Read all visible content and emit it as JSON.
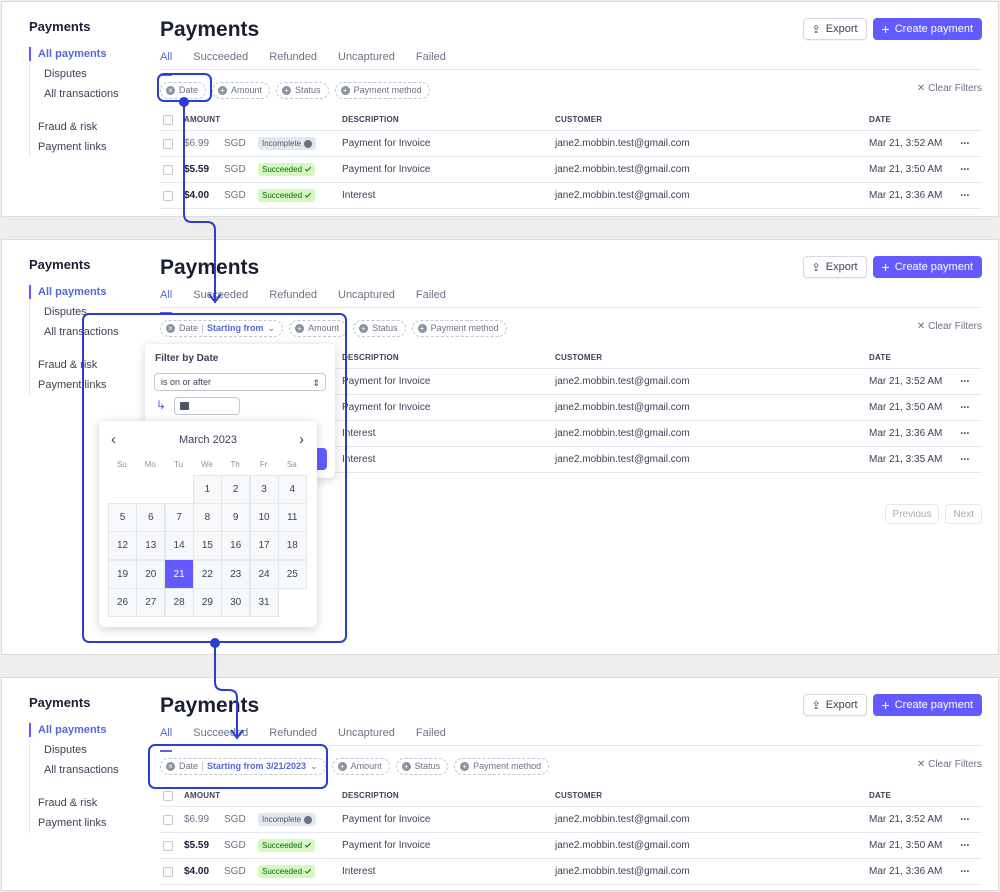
{
  "sidebar": {
    "title": "Payments",
    "items": [
      {
        "label": "All payments",
        "active": true,
        "sub": false
      },
      {
        "label": "Disputes",
        "active": false,
        "sub": true
      },
      {
        "label": "All transactions",
        "active": false,
        "sub": true
      },
      {
        "label": "Fraud & risk",
        "active": false,
        "sub": false,
        "gap": true
      },
      {
        "label": "Payment links",
        "active": false,
        "sub": false
      }
    ]
  },
  "header": {
    "title": "Payments",
    "export_label": "Export",
    "create_label": "Create payment"
  },
  "tabs": [
    "All",
    "Succeeded",
    "Refunded",
    "Uncaptured",
    "Failed"
  ],
  "filters": {
    "date": "Date",
    "amount": "Amount",
    "status": "Status",
    "method": "Payment method",
    "clear": "Clear Filters",
    "date_value_open": "Starting from",
    "date_value_applied": "Starting from 3/21/2023"
  },
  "columns": {
    "amount": "AMOUNT",
    "description": "DESCRIPTION",
    "customer": "CUSTOMER",
    "date": "DATE"
  },
  "rows": [
    {
      "amount": "$6.99",
      "currency": "SGD",
      "status": "Incomplete",
      "status_kind": "incomplete",
      "description": "Payment for Invoice",
      "customer": "jane2.mobbin.test@gmail.com",
      "date": "Mar 21, 3:52 AM"
    },
    {
      "amount": "$5.59",
      "currency": "SGD",
      "status": "Succeeded",
      "status_kind": "succeeded",
      "description": "Payment for Invoice",
      "customer": "jane2.mobbin.test@gmail.com",
      "date": "Mar 21, 3:50 AM"
    },
    {
      "amount": "$4.00",
      "currency": "SGD",
      "status": "Succeeded",
      "status_kind": "succeeded",
      "description": "Interest",
      "customer": "jane2.mobbin.test@gmail.com",
      "date": "Mar 21, 3:36 AM"
    },
    {
      "amount": "",
      "currency": "",
      "status": "",
      "status_kind": "",
      "description": "Interest",
      "customer": "jane2.mobbin.test@gmail.com",
      "date": "Mar 21, 3:35 AM"
    }
  ],
  "pagination": {
    "previous": "Previous",
    "next": "Next"
  },
  "date_filter": {
    "title": "Filter by Date",
    "condition": "is on or after"
  },
  "calendar": {
    "month": "March 2023",
    "weekdays": [
      "Su",
      "Mo",
      "Tu",
      "We",
      "Th",
      "Fr",
      "Sa"
    ],
    "first_weekday": 3,
    "days": 31,
    "selected": 21
  },
  "colors": {
    "accent": "#635bff",
    "annotation": "#2a3fd0"
  },
  "icons": {
    "more": "more-icon",
    "clear": "close-icon"
  }
}
